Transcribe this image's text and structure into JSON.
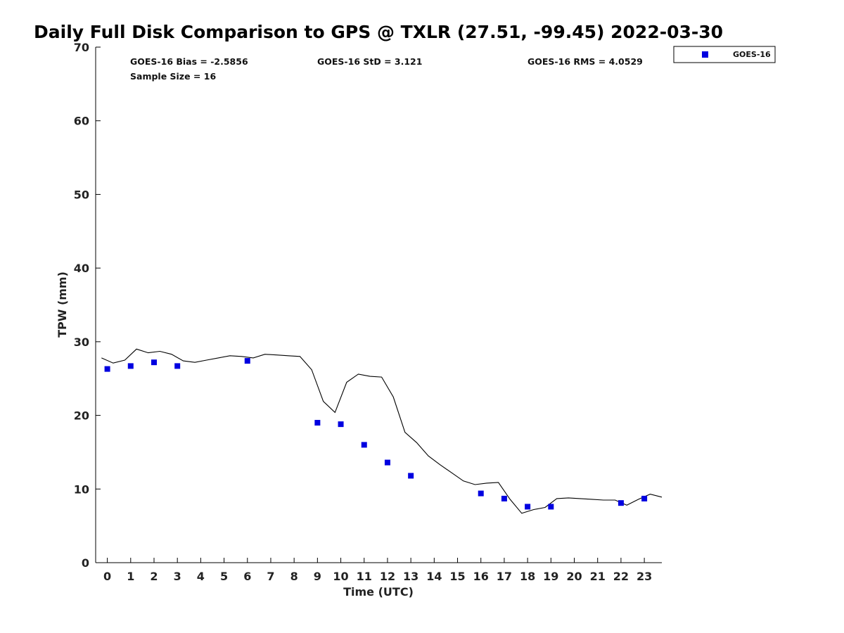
{
  "chart_data": {
    "type": "scatter",
    "title": "Daily Full Disk Comparison to GPS @ TXLR (27.51, -99.45) 2022-03-30",
    "xlabel": "Time (UTC)",
    "ylabel": "TPW (mm)",
    "xlim": [
      -0.5,
      23.75
    ],
    "ylim": [
      0,
      70
    ],
    "x_ticks": [
      0,
      1,
      2,
      3,
      4,
      5,
      6,
      7,
      8,
      9,
      10,
      11,
      12,
      13,
      14,
      15,
      16,
      17,
      18,
      19,
      20,
      21,
      22,
      23
    ],
    "y_ticks": [
      0,
      10,
      20,
      30,
      40,
      50,
      60,
      70
    ],
    "grid": false,
    "legend_position": "top-right, outside plot",
    "stats": {
      "bias": "GOES-16 Bias = -2.5856",
      "std": "GOES-16 StD = 3.121",
      "rms": "GOES-16 RMS = 4.0529",
      "sample": "Sample Size = 16"
    },
    "series": [
      {
        "name": "GOES-16",
        "kind": "scatter",
        "marker": "square",
        "color": "#0000e0",
        "x": [
          0,
          1,
          2,
          3,
          6,
          9,
          10,
          11,
          12,
          13,
          16,
          17,
          18,
          19,
          22,
          23
        ],
        "y": [
          26.3,
          26.7,
          27.2,
          26.7,
          27.4,
          19.0,
          18.8,
          16.0,
          13.6,
          11.8,
          9.4,
          8.7,
          7.6,
          7.6,
          8.1,
          8.7
        ]
      },
      {
        "kind": "line",
        "color": "#000000",
        "x": [
          -0.25,
          0.25,
          0.75,
          1.25,
          1.75,
          2.25,
          2.75,
          3.25,
          3.75,
          4.25,
          4.75,
          5.25,
          5.75,
          6.25,
          6.75,
          7.25,
          7.75,
          8.25,
          8.75,
          9.25,
          9.75,
          10.25,
          10.75,
          11.25,
          11.75,
          12.25,
          12.75,
          13.25,
          13.75,
          14.25,
          14.75,
          15.25,
          15.75,
          16.25,
          16.75,
          17.25,
          17.75,
          18.25,
          18.75,
          19.25,
          19.75,
          20.25,
          20.75,
          21.25,
          21.75,
          22.25,
          22.75,
          23.25,
          23.75
        ],
        "y": [
          27.8,
          27.1,
          27.5,
          29.0,
          28.5,
          28.7,
          28.3,
          27.4,
          27.2,
          27.5,
          27.8,
          28.1,
          28.0,
          27.8,
          28.3,
          28.2,
          28.1,
          28.0,
          26.2,
          21.9,
          20.4,
          24.5,
          25.6,
          25.3,
          25.2,
          22.5,
          17.7,
          16.3,
          14.5,
          13.3,
          12.2,
          11.1,
          10.6,
          10.8,
          10.9,
          8.6,
          6.7,
          7.2,
          7.5,
          8.7,
          8.8,
          8.7,
          8.6,
          8.5,
          8.5,
          7.8,
          8.6,
          9.3,
          8.9
        ]
      }
    ]
  }
}
